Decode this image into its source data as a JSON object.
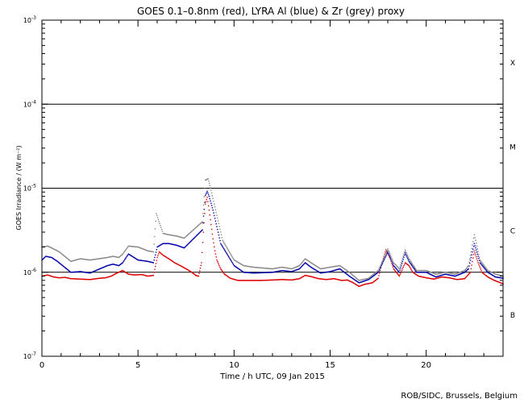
{
  "chart_data": {
    "type": "scatter",
    "title": "GOES 0.1–0.8nm (red), LYRA Al (blue) & Zr (grey) proxy",
    "xlabel": "Time / h UTC, 09 Jan 2015",
    "ylabel": "GOES Irradiance / (W m⁻²)",
    "xlim": [
      0,
      24
    ],
    "ylim": [
      1e-07,
      0.001
    ],
    "yscale": "log",
    "x_ticks": [
      {
        "value": 0,
        "label": "0"
      },
      {
        "value": 5,
        "label": "5"
      },
      {
        "value": 10,
        "label": "10"
      },
      {
        "value": 15,
        "label": "15"
      },
      {
        "value": 20,
        "label": "20"
      }
    ],
    "y_ticks": [
      {
        "value": 1e-07,
        "base": "10",
        "exp": "-7"
      },
      {
        "value": 1e-06,
        "base": "10",
        "exp": "-6"
      },
      {
        "value": 1e-05,
        "base": "10",
        "exp": "-5"
      },
      {
        "value": 0.0001,
        "base": "10",
        "exp": "-4"
      },
      {
        "value": 0.001,
        "base": "10",
        "exp": "-3"
      }
    ],
    "flare_classes": [
      {
        "label": "X",
        "threshold": 0.0001,
        "y_center": 0.000316
      },
      {
        "label": "M",
        "threshold": 1e-05,
        "y_center": 3.16e-05
      },
      {
        "label": "C",
        "threshold": 1e-06,
        "y_center": 3.16e-06
      },
      {
        "label": "B",
        "threshold": null,
        "y_center": 3.16e-07
      }
    ],
    "grid": false,
    "series": [
      {
        "color": "#dd0000",
        "points": [
          [
            0.0,
            9e-07
          ],
          [
            0.3,
            9.3e-07
          ],
          [
            0.6,
            8.8e-07
          ],
          [
            0.9,
            8.6e-07
          ],
          [
            1.2,
            8.7e-07
          ],
          [
            1.5,
            8.4e-07
          ],
          [
            2.0,
            8.3e-07
          ],
          [
            2.5,
            8.2e-07
          ],
          [
            3.0,
            8.5e-07
          ],
          [
            3.3,
            8.6e-07
          ],
          [
            3.6,
            9e-07
          ],
          [
            3.9,
            9.8e-07
          ],
          [
            4.2,
            1.05e-06
          ],
          [
            4.5,
            9.5e-07
          ],
          [
            4.8,
            9.3e-07
          ],
          [
            5.2,
            9.4e-07
          ],
          [
            5.5,
            9e-07
          ],
          [
            5.8,
            9.2e-07
          ],
          [
            6.0,
            1.5e-06
          ],
          [
            6.1,
            1.75e-06
          ],
          [
            6.3,
            1.6e-06
          ],
          [
            6.6,
            1.45e-06
          ],
          [
            6.9,
            1.3e-06
          ],
          [
            7.2,
            1.2e-06
          ],
          [
            7.5,
            1.1e-06
          ],
          [
            7.8,
            1e-06
          ],
          [
            8.0,
            9.2e-07
          ],
          [
            8.15,
            9e-07
          ],
          [
            8.3,
            1.3e-06
          ],
          [
            8.4,
            3e-06
          ],
          [
            8.5,
            6.5e-06
          ],
          [
            8.6,
            7.8e-06
          ],
          [
            8.7,
            5.5e-06
          ],
          [
            8.8,
            3.7e-06
          ],
          [
            8.9,
            2.5e-06
          ],
          [
            9.0,
            1.8e-06
          ],
          [
            9.1,
            1.4e-06
          ],
          [
            9.3,
            1.1e-06
          ],
          [
            9.5,
            9.5e-07
          ],
          [
            9.8,
            8.5e-07
          ],
          [
            10.2,
            8e-07
          ],
          [
            10.8,
            8e-07
          ],
          [
            11.4,
            8e-07
          ],
          [
            12.0,
            8.1e-07
          ],
          [
            12.5,
            8.2e-07
          ],
          [
            13.0,
            8.1e-07
          ],
          [
            13.4,
            8.4e-07
          ],
          [
            13.7,
            9.2e-07
          ],
          [
            14.0,
            8.9e-07
          ],
          [
            14.4,
            8.4e-07
          ],
          [
            14.8,
            8.2e-07
          ],
          [
            15.2,
            8.4e-07
          ],
          [
            15.6,
            8e-07
          ],
          [
            15.9,
            8.1e-07
          ],
          [
            16.2,
            7.5e-07
          ],
          [
            16.5,
            6.8e-07
          ],
          [
            16.8,
            7.2e-07
          ],
          [
            17.2,
            7.5e-07
          ],
          [
            17.5,
            8.5e-07
          ],
          [
            17.7,
            1.3e-06
          ],
          [
            17.9,
            1.85e-06
          ],
          [
            18.1,
            1.5e-06
          ],
          [
            18.3,
            1.1e-06
          ],
          [
            18.6,
            9e-07
          ],
          [
            18.9,
            1.3e-06
          ],
          [
            19.1,
            1.2e-06
          ],
          [
            19.3,
            1e-06
          ],
          [
            19.6,
            9e-07
          ],
          [
            20.0,
            8.6e-07
          ],
          [
            20.4,
            8.3e-07
          ],
          [
            20.8,
            8.8e-07
          ],
          [
            21.2,
            8.6e-07
          ],
          [
            21.6,
            8.2e-07
          ],
          [
            22.0,
            8.4e-07
          ],
          [
            22.3,
            1e-06
          ],
          [
            22.5,
            1.8e-06
          ],
          [
            22.7,
            1.3e-06
          ],
          [
            22.9,
            1e-06
          ],
          [
            23.2,
            8.8e-07
          ],
          [
            23.5,
            8.1e-07
          ],
          [
            23.8,
            7.6e-07
          ],
          [
            24.0,
            7.3e-07
          ]
        ]
      },
      {
        "color": "#0000aa",
        "points": [
          [
            0.0,
            1.4e-06
          ],
          [
            0.2,
            1.55e-06
          ],
          [
            0.5,
            1.5e-06
          ],
          [
            0.8,
            1.35e-06
          ],
          [
            1.5,
            1e-06
          ],
          [
            2.0,
            1.02e-06
          ],
          [
            2.5,
            9.8e-07
          ],
          [
            3.4,
            1.2e-06
          ],
          [
            3.7,
            1.25e-06
          ],
          [
            4.0,
            1.2e-06
          ],
          [
            4.2,
            1.3e-06
          ],
          [
            4.5,
            1.65e-06
          ],
          [
            5.0,
            1.4e-06
          ],
          [
            5.5,
            1.35e-06
          ],
          [
            5.8,
            1.3e-06
          ],
          [
            6.0,
            2e-06
          ],
          [
            6.3,
            2.2e-06
          ],
          [
            6.6,
            2.2e-06
          ],
          [
            7.0,
            2.1e-06
          ],
          [
            7.4,
            1.95e-06
          ],
          [
            8.35,
            3.2e-06
          ],
          [
            8.5,
            8.2e-06
          ],
          [
            8.6,
            9.2e-06
          ],
          [
            8.7,
            8e-06
          ],
          [
            8.9,
            5.5e-06
          ],
          [
            9.1,
            3.5e-06
          ],
          [
            9.3,
            2.2e-06
          ],
          [
            10.0,
            1.2e-06
          ],
          [
            10.5,
            1e-06
          ],
          [
            11.0,
            9.8e-07
          ],
          [
            12.0,
            1e-06
          ],
          [
            12.5,
            1.05e-06
          ],
          [
            13.0,
            1.02e-06
          ],
          [
            13.4,
            1.1e-06
          ],
          [
            13.7,
            1.3e-06
          ],
          [
            14.0,
            1.15e-06
          ],
          [
            14.5,
            9.8e-07
          ],
          [
            15.0,
            1.02e-06
          ],
          [
            15.5,
            1.1e-06
          ],
          [
            16.0,
            9e-07
          ],
          [
            16.5,
            7.5e-07
          ],
          [
            17.0,
            8.2e-07
          ],
          [
            17.5,
            1e-06
          ],
          [
            17.8,
            1.4e-06
          ],
          [
            18.0,
            1.75e-06
          ],
          [
            18.3,
            1.2e-06
          ],
          [
            18.6,
            1e-06
          ],
          [
            18.9,
            1.7e-06
          ],
          [
            19.1,
            1.35e-06
          ],
          [
            19.5,
            1e-06
          ],
          [
            20.0,
            1e-06
          ],
          [
            20.5,
            8.8e-07
          ],
          [
            21.0,
            9.5e-07
          ],
          [
            21.5,
            9e-07
          ],
          [
            22.0,
            1e-06
          ],
          [
            22.2,
            1.1e-06
          ],
          [
            22.5,
            2.2e-06
          ],
          [
            22.8,
            1.3e-06
          ],
          [
            23.2,
            1e-06
          ],
          [
            23.6,
            8.8e-07
          ],
          [
            24.0,
            8.5e-07
          ]
        ]
      },
      {
        "color": "#888888",
        "points": [
          [
            0.0,
            2e-06
          ],
          [
            0.3,
            2.05e-06
          ],
          [
            0.6,
            1.9e-06
          ],
          [
            0.9,
            1.75e-06
          ],
          [
            1.5,
            1.35e-06
          ],
          [
            2.0,
            1.45e-06
          ],
          [
            2.5,
            1.4e-06
          ],
          [
            3.4,
            1.5e-06
          ],
          [
            3.7,
            1.55e-06
          ],
          [
            4.0,
            1.5e-06
          ],
          [
            4.2,
            1.65e-06
          ],
          [
            4.5,
            2.05e-06
          ],
          [
            5.0,
            2e-06
          ],
          [
            5.5,
            1.8e-06
          ],
          [
            5.8,
            1.75e-06
          ],
          [
            5.95,
            5e-06
          ],
          [
            6.3,
            2.9e-06
          ],
          [
            6.6,
            2.8e-06
          ],
          [
            7.0,
            2.7e-06
          ],
          [
            7.4,
            2.55e-06
          ],
          [
            8.35,
            4e-06
          ],
          [
            8.5,
            1.25e-05
          ],
          [
            8.65,
            1.3e-05
          ],
          [
            8.8,
            9.5e-06
          ],
          [
            9.0,
            6e-06
          ],
          [
            9.2,
            3.8e-06
          ],
          [
            9.4,
            2.4e-06
          ],
          [
            10.0,
            1.4e-06
          ],
          [
            10.5,
            1.2e-06
          ],
          [
            11.0,
            1.15e-06
          ],
          [
            12.0,
            1.1e-06
          ],
          [
            12.5,
            1.15e-06
          ],
          [
            13.0,
            1.1e-06
          ],
          [
            13.4,
            1.2e-06
          ],
          [
            13.7,
            1.45e-06
          ],
          [
            14.0,
            1.3e-06
          ],
          [
            14.5,
            1.1e-06
          ],
          [
            15.0,
            1.15e-06
          ],
          [
            15.5,
            1.2e-06
          ],
          [
            16.0,
            1e-06
          ],
          [
            16.5,
            8e-07
          ],
          [
            17.0,
            8.5e-07
          ],
          [
            17.5,
            1.05e-06
          ],
          [
            17.8,
            1.5e-06
          ],
          [
            18.0,
            1.9e-06
          ],
          [
            18.3,
            1.3e-06
          ],
          [
            18.6,
            1.1e-06
          ],
          [
            18.9,
            1.85e-06
          ],
          [
            19.1,
            1.45e-06
          ],
          [
            19.5,
            1.05e-06
          ],
          [
            20.0,
            1.05e-06
          ],
          [
            20.5,
            9.5e-07
          ],
          [
            21.0,
            1e-06
          ],
          [
            21.5,
            9.5e-07
          ],
          [
            22.0,
            1.05e-06
          ],
          [
            22.2,
            1.2e-06
          ],
          [
            22.5,
            2.8e-06
          ],
          [
            22.8,
            1.4e-06
          ],
          [
            23.2,
            1.05e-06
          ],
          [
            23.6,
            9.5e-07
          ],
          [
            24.0,
            9e-07
          ]
        ]
      }
    ]
  },
  "footer": {
    "credit": "ROB/SIDC, Brussels, Belgium"
  }
}
